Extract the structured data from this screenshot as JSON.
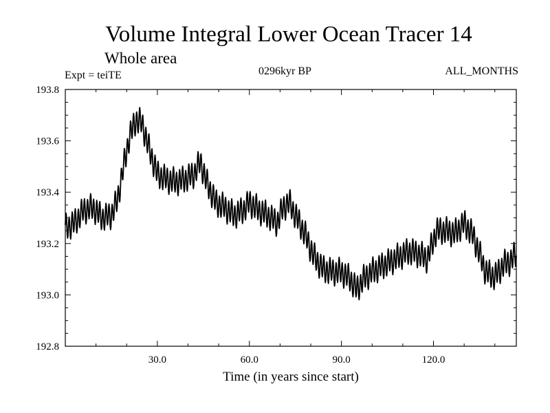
{
  "header": {
    "title": "Volume Integral Lower Ocean Tracer 14",
    "subtitle": "Whole area",
    "expt_label": "Expt = teiTE",
    "period_label": "0296kyr BP",
    "months_label": "ALL_MONTHS"
  },
  "chart_data": {
    "type": "line",
    "title": "Volume Integral Lower Ocean Tracer 14",
    "subtitle": "Whole area",
    "xlabel": "Time (in years since start)",
    "ylabel": "",
    "xlim": [
      0,
      147
    ],
    "ylim": [
      192.8,
      193.8
    ],
    "xticks": [
      30,
      60,
      90,
      120
    ],
    "xtick_labels": [
      "30.0",
      "60.0",
      "90.0",
      "120.0"
    ],
    "yticks": [
      192.8,
      193.0,
      193.2,
      193.4,
      193.6,
      193.8
    ],
    "ytick_labels": [
      "192.8",
      "193.0",
      "193.2",
      "193.4",
      "193.6",
      "193.8"
    ],
    "grid": false,
    "series": [
      {
        "name": "Tracer 14",
        "seasonal_amplitude": 0.045,
        "x": [
          0,
          3,
          6,
          9,
          12,
          15,
          17,
          19,
          21,
          23,
          25,
          27,
          30,
          33,
          36,
          39,
          42,
          44,
          46,
          49,
          52,
          55,
          58,
          60,
          63,
          66,
          69,
          71,
          73,
          75,
          78,
          81,
          84,
          87,
          90,
          93,
          95,
          97,
          100,
          103,
          106,
          109,
          112,
          115,
          118,
          121,
          124,
          127,
          130,
          133,
          135,
          137,
          140,
          143,
          145,
          147
        ],
        "values": [
          193.26,
          193.28,
          193.33,
          193.34,
          193.3,
          193.31,
          193.37,
          193.5,
          193.62,
          193.68,
          193.67,
          193.58,
          193.47,
          193.45,
          193.44,
          193.45,
          193.47,
          193.52,
          193.44,
          193.36,
          193.34,
          193.31,
          193.33,
          193.36,
          193.33,
          193.31,
          193.28,
          193.34,
          193.36,
          193.31,
          193.24,
          193.15,
          193.1,
          193.09,
          193.09,
          193.06,
          193.02,
          193.06,
          193.09,
          193.11,
          193.13,
          193.15,
          193.17,
          193.16,
          193.14,
          193.25,
          193.25,
          193.24,
          193.28,
          193.23,
          193.16,
          193.09,
          193.07,
          193.12,
          193.13,
          193.16
        ]
      }
    ]
  },
  "axes": {
    "xlabel": "Time (in years since start)"
  }
}
